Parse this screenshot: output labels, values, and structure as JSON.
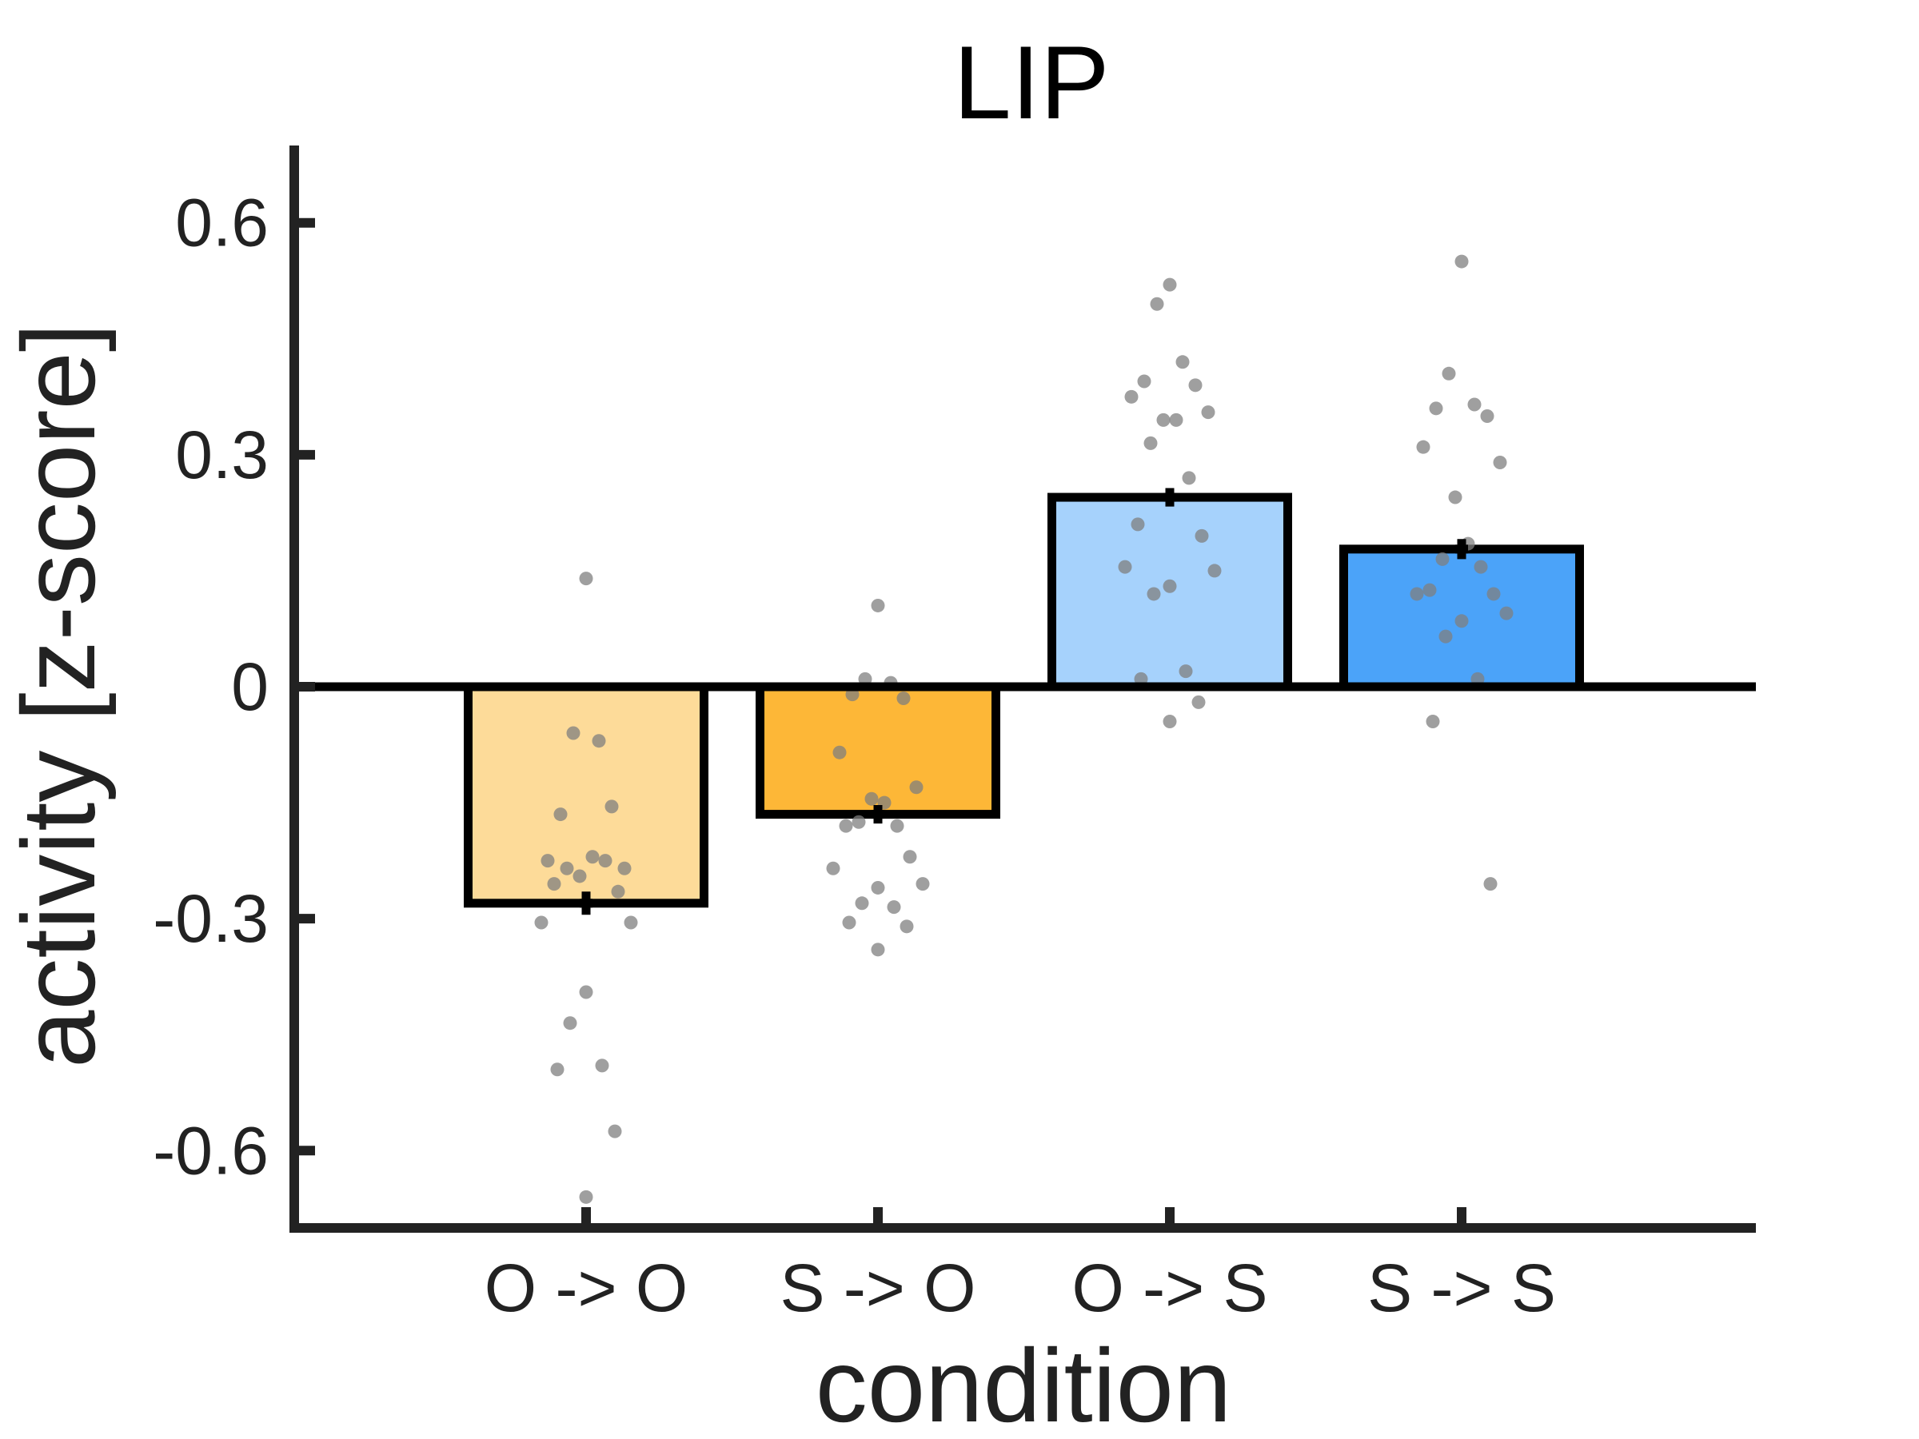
{
  "chart_data": {
    "type": "bar",
    "title": "LIP",
    "xlabel": "condition",
    "ylabel": "activity [z-score]",
    "ylim": [
      -0.7,
      0.7
    ],
    "yticks": [
      -0.6,
      -0.3,
      0,
      0.3,
      0.6
    ],
    "ytick_labels": [
      "-0.6",
      "-0.3",
      "0",
      "0.3",
      "0.6"
    ],
    "categories": [
      "O -> O",
      "S -> O",
      "O -> S",
      "S -> S"
    ],
    "values": [
      -0.28,
      -0.165,
      0.245,
      0.178
    ],
    "sem": [
      0.015,
      0.012,
      0.012,
      0.013
    ],
    "colors": [
      "#FDDB99",
      "#FDB737",
      "#A6D2FC",
      "#4BA3F9"
    ],
    "edge_color": "#000000",
    "point_color": "#7f7f7f",
    "grid": false,
    "points": [
      [
        0.14,
        -0.06,
        -0.07,
        -0.165,
        -0.155,
        -0.225,
        -0.235,
        -0.245,
        -0.22,
        -0.235,
        -0.225,
        -0.255,
        -0.265,
        -0.305,
        -0.305,
        -0.395,
        -0.435,
        -0.49,
        -0.495,
        -0.575,
        -0.66
      ],
      [
        0.105,
        0.01,
        0.005,
        -0.01,
        -0.015,
        -0.085,
        -0.13,
        -0.145,
        -0.15,
        -0.175,
        -0.18,
        -0.18,
        -0.22,
        -0.235,
        -0.255,
        -0.26,
        -0.28,
        -0.285,
        -0.305,
        -0.31,
        -0.34
      ],
      [
        0.52,
        0.495,
        0.42,
        0.395,
        0.39,
        0.375,
        0.355,
        0.345,
        0.345,
        0.315,
        0.27,
        0.21,
        0.195,
        0.155,
        0.15,
        0.13,
        0.12,
        0.02,
        0.01,
        -0.02,
        -0.045
      ],
      [
        0.55,
        0.405,
        0.365,
        0.36,
        0.35,
        0.31,
        0.29,
        0.245,
        0.185,
        0.165,
        0.155,
        0.125,
        0.12,
        0.12,
        0.095,
        0.085,
        0.065,
        0.01,
        -0.045,
        -0.255
      ]
    ]
  }
}
